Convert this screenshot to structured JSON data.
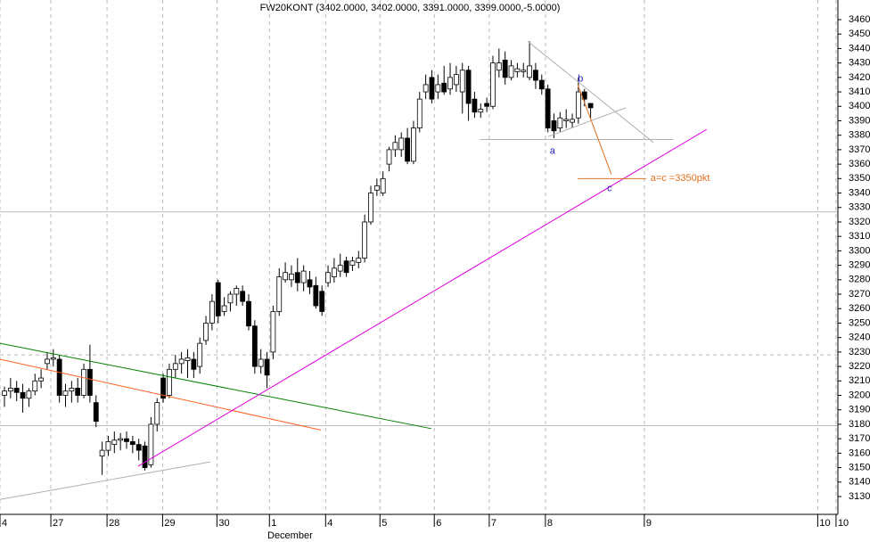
{
  "chart_data": {
    "type": "candlestick",
    "title": "FW20KONT (3402.0000, 3402.0000, 3391.0000, 3399.0000,-5.0000)",
    "month_label": "December",
    "ylim": [
      3460,
      3130
    ],
    "yticks": [
      3130,
      3140,
      3150,
      3160,
      3170,
      3180,
      3190,
      3200,
      3210,
      3220,
      3230,
      3240,
      3250,
      3260,
      3270,
      3280,
      3290,
      3300,
      3310,
      3320,
      3330,
      3340,
      3350,
      3360,
      3370,
      3380,
      3390,
      3400,
      3410,
      3420,
      3430,
      3440,
      3450,
      3460
    ],
    "xlim": [
      -0.73,
      136.5
    ],
    "xticks": [
      {
        "value": -0.73,
        "label": "4"
      },
      {
        "value": 7.6,
        "label": "27"
      },
      {
        "value": 16.8,
        "label": "28"
      },
      {
        "value": 25.9,
        "label": "29"
      },
      {
        "value": 34.8,
        "label": "30"
      },
      {
        "value": 43.4,
        "label": "1"
      },
      {
        "value": 52.6,
        "label": "4"
      },
      {
        "value": 61.5,
        "label": "5"
      },
      {
        "value": 70.4,
        "label": "6"
      },
      {
        "value": 79.4,
        "label": "7"
      },
      {
        "value": 88.6,
        "label": "8"
      },
      {
        "value": 104.8,
        "label": "9"
      },
      {
        "value": 133.2,
        "label": "10"
      },
      {
        "value": 136.2,
        "label": "10"
      }
    ],
    "grid": true,
    "hlines": [
      3327,
      3179
    ],
    "dashed_hlines": [
      3228
    ],
    "candles": [
      [
        3200,
        3206,
        3192,
        3203
      ],
      [
        3203,
        3212,
        3198,
        3205
      ],
      [
        3205,
        3210,
        3196,
        3202
      ],
      [
        3202,
        3208,
        3188,
        3198
      ],
      [
        3198,
        3205,
        3192,
        3203
      ],
      [
        3203,
        3215,
        3200,
        3210
      ],
      [
        3210,
        3218,
        3205,
        3212
      ],
      [
        3222,
        3230,
        3218,
        3225
      ],
      [
        3225,
        3232,
        3220,
        3226
      ],
      [
        3225,
        3228,
        3195,
        3200
      ],
      [
        3200,
        3208,
        3192,
        3203
      ],
      [
        3203,
        3210,
        3195,
        3205
      ],
      [
        3205,
        3212,
        3195,
        3200
      ],
      [
        3200,
        3222,
        3198,
        3218
      ],
      [
        3218,
        3235,
        3195,
        3200
      ],
      [
        3195,
        3200,
        3178,
        3182
      ],
      [
        3158,
        3168,
        3145,
        3162
      ],
      [
        3162,
        3172,
        3158,
        3168
      ],
      [
        3166,
        3175,
        3160,
        3169
      ],
      [
        3169,
        3174,
        3162,
        3170
      ],
      [
        3170,
        3175,
        3163,
        3168
      ],
      [
        3168,
        3172,
        3160,
        3166
      ],
      [
        3166,
        3170,
        3155,
        3162
      ],
      [
        3165,
        3168,
        3148,
        3150
      ],
      [
        3152,
        3185,
        3150,
        3180
      ],
      [
        3180,
        3198,
        3175,
        3195
      ],
      [
        3212,
        3215,
        3195,
        3198
      ],
      [
        3200,
        3222,
        3198,
        3218
      ],
      [
        3218,
        3228,
        3212,
        3222
      ],
      [
        3222,
        3230,
        3215,
        3225
      ],
      [
        3224,
        3232,
        3212,
        3226
      ],
      [
        3225,
        3230,
        3212,
        3218
      ],
      [
        3220,
        3240,
        3215,
        3236
      ],
      [
        3238,
        3255,
        3235,
        3250
      ],
      [
        3250,
        3270,
        3245,
        3265
      ],
      [
        3278,
        3280,
        3250,
        3255
      ],
      [
        3258,
        3268,
        3255,
        3262
      ],
      [
        3264,
        3272,
        3258,
        3270
      ],
      [
        3270,
        3276,
        3262,
        3274
      ],
      [
        3272,
        3276,
        3262,
        3265
      ],
      [
        3265,
        3270,
        3245,
        3248
      ],
      [
        3248,
        3252,
        3215,
        3220
      ],
      [
        3220,
        3232,
        3215,
        3225
      ],
      [
        3225,
        3230,
        3205,
        3214
      ],
      [
        3230,
        3262,
        3225,
        3258
      ],
      [
        3258,
        3288,
        3255,
        3282
      ],
      [
        3280,
        3292,
        3278,
        3285
      ],
      [
        3280,
        3290,
        3275,
        3284
      ],
      [
        3285,
        3295,
        3272,
        3278
      ],
      [
        3278,
        3290,
        3272,
        3286
      ],
      [
        3280,
        3286,
        3270,
        3275
      ],
      [
        3276,
        3282,
        3260,
        3262
      ],
      [
        3272,
        3276,
        3255,
        3258
      ],
      [
        3278,
        3290,
        3275,
        3285
      ],
      [
        3282,
        3295,
        3278,
        3288
      ],
      [
        3286,
        3298,
        3282,
        3290
      ],
      [
        3293,
        3296,
        3282,
        3285
      ],
      [
        3290,
        3296,
        3286,
        3293
      ],
      [
        3292,
        3300,
        3288,
        3295
      ],
      [
        3295,
        3325,
        3292,
        3320
      ],
      [
        3320,
        3345,
        3318,
        3340
      ],
      [
        3342,
        3350,
        3338,
        3345
      ],
      [
        3340,
        3355,
        3338,
        3350
      ],
      [
        3360,
        3372,
        3355,
        3370
      ],
      [
        3370,
        3380,
        3365,
        3375
      ],
      [
        3370,
        3382,
        3365,
        3378
      ],
      [
        3378,
        3385,
        3360,
        3362
      ],
      [
        3362,
        3390,
        3360,
        3385
      ],
      [
        3385,
        3410,
        3382,
        3405
      ],
      [
        3410,
        3422,
        3405,
        3415
      ],
      [
        3420,
        3425,
        3402,
        3405
      ],
      [
        3410,
        3422,
        3405,
        3415
      ],
      [
        3416,
        3428,
        3408,
        3410
      ],
      [
        3412,
        3430,
        3408,
        3420
      ],
      [
        3415,
        3428,
        3410,
        3422
      ],
      [
        3410,
        3430,
        3395,
        3425
      ],
      [
        3425,
        3428,
        3390,
        3402
      ],
      [
        3405,
        3410,
        3392,
        3396
      ],
      [
        3396,
        3402,
        3392,
        3398
      ],
      [
        3402,
        3406,
        3396,
        3400
      ],
      [
        3400,
        3435,
        3398,
        3430
      ],
      [
        3425,
        3440,
        3420,
        3430
      ],
      [
        3432,
        3438,
        3415,
        3420
      ],
      [
        3420,
        3432,
        3418,
        3428
      ],
      [
        3424,
        3430,
        3420,
        3426
      ],
      [
        3424,
        3430,
        3420,
        3425
      ],
      [
        3420,
        3445,
        3418,
        3428
      ],
      [
        3425,
        3430,
        3412,
        3418
      ],
      [
        3418,
        3422,
        3408,
        3412
      ],
      [
        3412,
        3415,
        3382,
        3385
      ],
      [
        3390,
        3395,
        3378,
        3383
      ],
      [
        3385,
        3396,
        3382,
        3392
      ],
      [
        3390,
        3398,
        3385,
        3391
      ],
      [
        3389,
        3395,
        3385,
        3391
      ],
      [
        3392,
        3420,
        3388,
        3410
      ],
      [
        3410,
        3412,
        3400,
        3405
      ],
      [
        3402,
        3402,
        3391,
        3399
      ]
    ],
    "lines": [
      {
        "color": "#008000",
        "points": [
          [
            -0.73,
            3236
          ],
          [
            69.9,
            3177
          ]
        ]
      },
      {
        "color": "#ff6020",
        "points": [
          [
            -0.73,
            3225
          ],
          [
            51.8,
            3176
          ]
        ]
      },
      {
        "color": "#e000e0",
        "points": [
          [
            21.9,
            3151
          ],
          [
            115.0,
            3384
          ]
        ]
      },
      {
        "color": "#b0b0b0",
        "points": [
          [
            -0.73,
            3128
          ],
          [
            33.7,
            3154
          ]
        ]
      },
      {
        "color": "#b0b0b0",
        "points": [
          [
            85.7,
            3445
          ],
          [
            106.3,
            3375
          ]
        ]
      },
      {
        "color": "#b0b0b0",
        "points": [
          [
            77.9,
            3377
          ],
          [
            109.5,
            3377
          ]
        ]
      },
      {
        "color": "#b0b0b0",
        "points": [
          [
            89.0,
            3379
          ],
          [
            101.8,
            3399
          ]
        ]
      },
      {
        "color": "#e07020",
        "points": [
          [
            93.9,
            3415
          ],
          [
            99.4,
            3353
          ]
        ]
      },
      {
        "color": "#e07020",
        "points": [
          [
            93.9,
            3350
          ],
          [
            105.1,
            3350
          ]
        ]
      }
    ],
    "annotations": [
      {
        "text": "b",
        "x": 93.9,
        "y": 3419,
        "color": "#2020c0"
      },
      {
        "text": "a",
        "x": 89.3,
        "y": 3369,
        "color": "#2020c0"
      },
      {
        "text": "c",
        "x": 98.7,
        "y": 3343,
        "color": "#2020c0"
      },
      {
        "text": "a=c =3350pkt",
        "x": 105.8,
        "y": 3350,
        "color": "#e07020"
      }
    ]
  }
}
